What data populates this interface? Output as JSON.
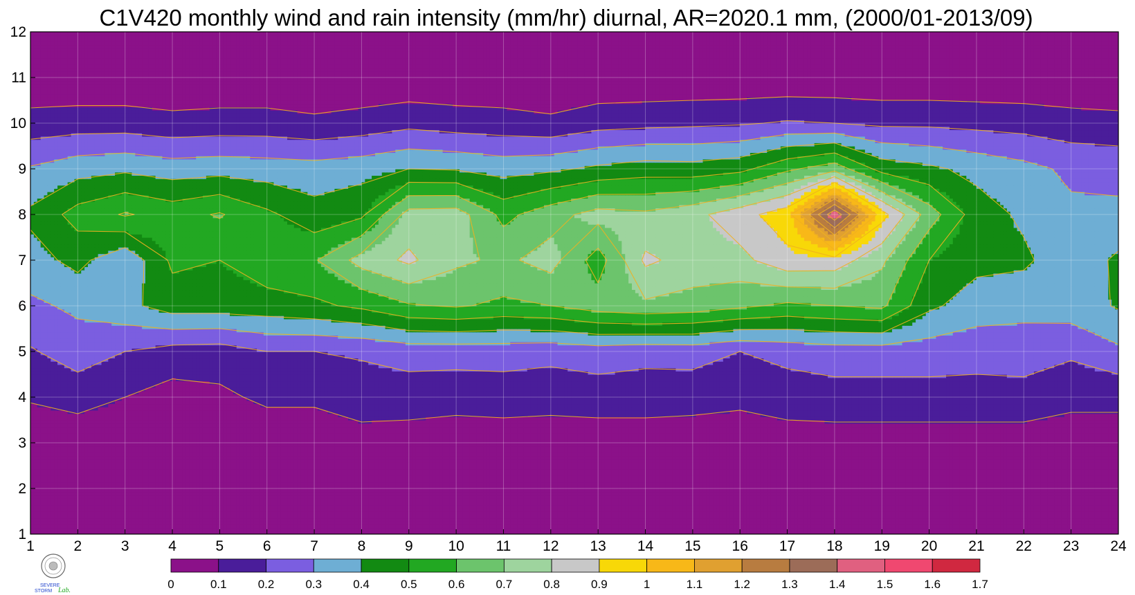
{
  "chart_data": {
    "type": "heatmap",
    "subtype": "filled-contour",
    "title": "C1V420 monthly wind and rain intensity (mm/hr) diurnal, AR=2020.1 mm, (2000/01-2013/09)",
    "xlabel": "",
    "ylabel": "",
    "x": [
      1,
      2,
      3,
      4,
      5,
      6,
      7,
      8,
      9,
      10,
      11,
      12,
      13,
      14,
      15,
      16,
      17,
      18,
      19,
      20,
      21,
      22,
      23,
      24
    ],
    "y": [
      1,
      2,
      3,
      4,
      5,
      6,
      7,
      8,
      9,
      10,
      11,
      12
    ],
    "xlim": [
      1,
      24
    ],
    "ylim": [
      1,
      12
    ],
    "grid": true,
    "colorbar": {
      "placement": "bottom",
      "levels": [
        0,
        0.1,
        0.2,
        0.3,
        0.4,
        0.5,
        0.6,
        0.7,
        0.8,
        0.9,
        1,
        1.1,
        1.2,
        1.3,
        1.4,
        1.5,
        1.6,
        1.7
      ],
      "colors": [
        "#8b1189",
        "#4a1d9a",
        "#7b5ee0",
        "#6eaed4",
        "#128a12",
        "#22a822",
        "#6cc46c",
        "#9ed49e",
        "#c8c8c8",
        "#f8d808",
        "#f8b818",
        "#e0a030",
        "#b87c40",
        "#9c6c58",
        "#e06080",
        "#f04870",
        "#d02840"
      ]
    },
    "values": [
      [
        0.02,
        0.02,
        0.02,
        0.02,
        0.02,
        0.02,
        0.02,
        0.02,
        0.02,
        0.02,
        0.02,
        0.02,
        0.02,
        0.02,
        0.02,
        0.02,
        0.02,
        0.02,
        0.02,
        0.02,
        0.02,
        0.02,
        0.02,
        0.02
      ],
      [
        0.02,
        0.02,
        0.02,
        0.02,
        0.02,
        0.02,
        0.02,
        0.02,
        0.02,
        0.02,
        0.02,
        0.02,
        0.02,
        0.02,
        0.02,
        0.02,
        0.02,
        0.02,
        0.02,
        0.02,
        0.02,
        0.02,
        0.02,
        0.02
      ],
      [
        0.03,
        0.03,
        0.03,
        0.02,
        0.03,
        0.03,
        0.03,
        0.05,
        0.05,
        0.04,
        0.04,
        0.04,
        0.04,
        0.04,
        0.04,
        0.05,
        0.05,
        0.05,
        0.05,
        0.05,
        0.05,
        0.05,
        0.06,
        0.06
      ],
      [
        0.11,
        0.14,
        0.1,
        0.06,
        0.08,
        0.12,
        0.12,
        0.16,
        0.15,
        0.14,
        0.15,
        0.14,
        0.15,
        0.15,
        0.14,
        0.12,
        0.15,
        0.16,
        0.16,
        0.16,
        0.16,
        0.16,
        0.12,
        0.12
      ],
      [
        0.19,
        0.25,
        0.2,
        0.16,
        0.15,
        0.2,
        0.2,
        0.21,
        0.24,
        0.24,
        0.24,
        0.23,
        0.25,
        0.23,
        0.24,
        0.2,
        0.23,
        0.25,
        0.25,
        0.25,
        0.24,
        0.25,
        0.22,
        0.28
      ],
      [
        0.28,
        0.32,
        0.37,
        0.45,
        0.45,
        0.46,
        0.48,
        0.52,
        0.59,
        0.61,
        0.58,
        0.6,
        0.65,
        0.68,
        0.66,
        0.62,
        0.58,
        0.6,
        0.62,
        0.42,
        0.35,
        0.33,
        0.35,
        0.41
      ],
      [
        0.36,
        0.43,
        0.32,
        0.52,
        0.5,
        0.56,
        0.59,
        0.74,
        0.82,
        0.72,
        0.68,
        0.74,
        0.55,
        0.82,
        0.76,
        0.77,
        0.87,
        0.86,
        0.72,
        0.5,
        0.43,
        0.42,
        0.33,
        0.42
      ],
      [
        0.42,
        0.54,
        0.61,
        0.56,
        0.61,
        0.52,
        0.44,
        0.48,
        0.74,
        0.75,
        0.57,
        0.66,
        0.74,
        0.72,
        0.77,
        0.86,
        0.96,
        1.48,
        0.94,
        0.65,
        0.45,
        0.38,
        0.32,
        0.32
      ],
      [
        0.31,
        0.36,
        0.38,
        0.35,
        0.36,
        0.35,
        0.34,
        0.36,
        0.4,
        0.39,
        0.36,
        0.38,
        0.42,
        0.45,
        0.44,
        0.47,
        0.58,
        0.66,
        0.46,
        0.42,
        0.37,
        0.33,
        0.28,
        0.27
      ],
      [
        0.14,
        0.15,
        0.15,
        0.13,
        0.14,
        0.14,
        0.12,
        0.14,
        0.17,
        0.15,
        0.14,
        0.12,
        0.16,
        0.17,
        0.18,
        0.19,
        0.21,
        0.2,
        0.18,
        0.18,
        0.17,
        0.16,
        0.14,
        0.13
      ],
      [
        0.02,
        0.02,
        0.02,
        0.02,
        0.02,
        0.02,
        0.02,
        0.02,
        0.02,
        0.02,
        0.02,
        0.02,
        0.02,
        0.02,
        0.02,
        0.02,
        0.02,
        0.02,
        0.02,
        0.02,
        0.02,
        0.02,
        0.02,
        0.02
      ],
      [
        0.02,
        0.02,
        0.02,
        0.02,
        0.02,
        0.02,
        0.02,
        0.02,
        0.02,
        0.02,
        0.02,
        0.02,
        0.02,
        0.02,
        0.02,
        0.02,
        0.02,
        0.02,
        0.02,
        0.02,
        0.02,
        0.02,
        0.02,
        0.02
      ]
    ]
  },
  "logo": {
    "lab_text": "Lab.",
    "severe_text": "SEVERE",
    "storm_text": "STORM"
  }
}
